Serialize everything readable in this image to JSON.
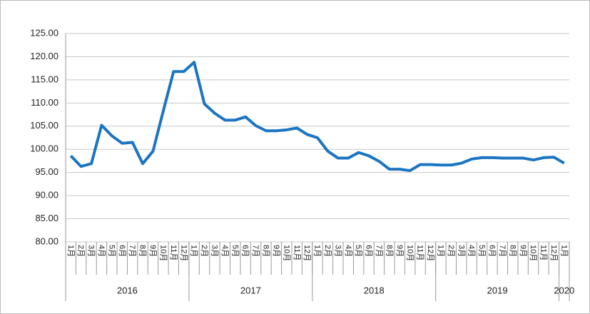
{
  "chart_data": {
    "type": "line",
    "groups": [
      {
        "label": "2016",
        "categories": [
          "1月",
          "2月",
          "3月",
          "4月",
          "5月",
          "6月",
          "7月",
          "8月",
          "9月",
          "10月",
          "11月",
          "12月"
        ]
      },
      {
        "label": "2017",
        "categories": [
          "1月",
          "2月",
          "3月",
          "4月",
          "5月",
          "6月",
          "7月",
          "8月",
          "9月",
          "10月",
          "11月",
          "12月"
        ]
      },
      {
        "label": "2018",
        "categories": [
          "1月",
          "2月",
          "3月",
          "4月",
          "5月",
          "6月",
          "7月",
          "8月",
          "9月",
          "10月",
          "11月",
          "12月"
        ]
      },
      {
        "label": "2019",
        "categories": [
          "1月",
          "2月",
          "3月",
          "4月",
          "5月",
          "6月",
          "7月",
          "8月",
          "9月",
          "10月",
          "11月",
          "12月"
        ]
      },
      {
        "label": "2020",
        "categories": [
          "1月"
        ]
      }
    ],
    "series": [
      {
        "color": "#1b75c2",
        "values": [
          98.6,
          96.3,
          96.9,
          105.2,
          102.9,
          101.3,
          101.5,
          96.9,
          99.6,
          108.3,
          116.8,
          116.8,
          118.8,
          109.8,
          107.8,
          106.3,
          106.3,
          107.0,
          105.1,
          104.0,
          104.0,
          104.2,
          104.6,
          103.2,
          102.5,
          99.6,
          98.1,
          98.1,
          99.3,
          98.6,
          97.4,
          95.7,
          95.7,
          95.4,
          96.7,
          96.7,
          96.6,
          96.6,
          97.0,
          97.9,
          98.2,
          98.2,
          98.1,
          98.1,
          98.1,
          97.7,
          98.2,
          98.3,
          97.0
        ]
      }
    ],
    "ylim": [
      80,
      125
    ],
    "yticks": [
      {
        "value": 80,
        "label": "80.00"
      },
      {
        "value": 85,
        "label": "85.00"
      },
      {
        "value": 90,
        "label": "90.00"
      },
      {
        "value": 95,
        "label": "95.00"
      },
      {
        "value": 100,
        "label": "100.00"
      },
      {
        "value": 105,
        "label": "105.00"
      },
      {
        "value": 110,
        "label": "110.00"
      },
      {
        "value": 115,
        "label": "115.00"
      },
      {
        "value": 120,
        "label": "120.00"
      },
      {
        "value": 125,
        "label": "125.00"
      }
    ],
    "grid": true
  }
}
